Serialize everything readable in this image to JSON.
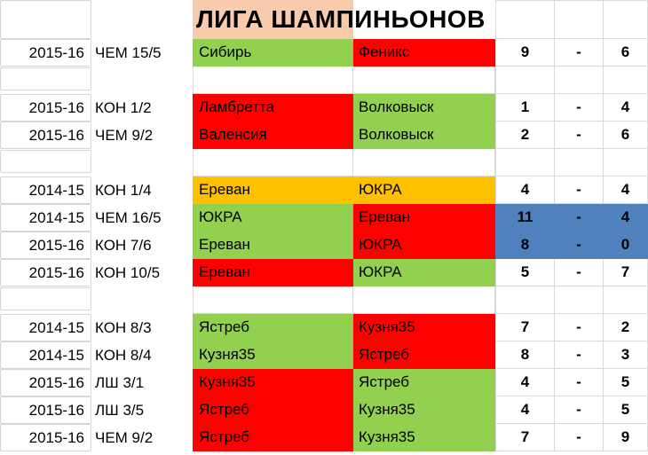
{
  "title": "ЛИГА ШАМПИНЬОНОВ",
  "score_separator": "-",
  "colors": {
    "green": "#92D050",
    "red": "#FF0000",
    "orange": "#FFC000",
    "blue_score": "#4F81BD",
    "title_bg": "#F8CBAD",
    "gridline": "#D9D9D9"
  },
  "rows": [
    {
      "type": "match",
      "season": "2015-16",
      "stage": "ЧЕМ 15/5",
      "home": "Сибирь",
      "home_color": "green",
      "away": "Феникс",
      "away_color": "red",
      "home_score": "9",
      "away_score": "6",
      "score_bg": ""
    },
    {
      "type": "spacer"
    },
    {
      "type": "match",
      "season": "2015-16",
      "stage": "КОН 1/2",
      "home": "Ламбретта",
      "home_color": "red",
      "away": "Волковыск",
      "away_color": "green",
      "home_score": "1",
      "away_score": "4",
      "score_bg": ""
    },
    {
      "type": "match",
      "season": "2015-16",
      "stage": "ЧЕМ 9/2",
      "home": "Валенсия",
      "home_color": "red",
      "away": "Волковыск",
      "away_color": "green",
      "home_score": "2",
      "away_score": "6",
      "score_bg": ""
    },
    {
      "type": "spacer"
    },
    {
      "type": "match",
      "season": "2014-15",
      "stage": "КОН 1/4",
      "home": "Ереван",
      "home_color": "orange",
      "away": "ЮКРА",
      "away_color": "orange",
      "home_score": "4",
      "away_score": "4",
      "score_bg": ""
    },
    {
      "type": "match",
      "season": "2014-15",
      "stage": "ЧЕМ 16/5",
      "home": "ЮКРА",
      "home_color": "green",
      "away": "Ереван",
      "away_color": "red",
      "home_score": "11",
      "away_score": "4",
      "score_bg": "blue"
    },
    {
      "type": "match",
      "season": "2015-16",
      "stage": "КОН 7/6",
      "home": "Ереван",
      "home_color": "green",
      "away": "ЮКРА",
      "away_color": "red",
      "home_score": "8",
      "away_score": "0",
      "score_bg": "blue"
    },
    {
      "type": "match",
      "season": "2015-16",
      "stage": "КОН 10/5",
      "home": "Ереван",
      "home_color": "red",
      "away": "ЮКРА",
      "away_color": "green",
      "home_score": "5",
      "away_score": "7",
      "score_bg": ""
    },
    {
      "type": "spacer"
    },
    {
      "type": "match",
      "season": "2014-15",
      "stage": "КОН 8/3",
      "home": "Ястреб",
      "home_color": "green",
      "away": "Кузня35",
      "away_color": "red",
      "home_score": "7",
      "away_score": "2",
      "score_bg": ""
    },
    {
      "type": "match",
      "season": "2014-15",
      "stage": "КОН 8/4",
      "home": "Кузня35",
      "home_color": "green",
      "away": "Ястреб",
      "away_color": "red",
      "home_score": "8",
      "away_score": "3",
      "score_bg": ""
    },
    {
      "type": "match",
      "season": "2015-16",
      "stage": "ЛШ 3/1",
      "home": "Кузня35",
      "home_color": "red",
      "away": "Ястреб",
      "away_color": "green",
      "home_score": "4",
      "away_score": "5",
      "score_bg": ""
    },
    {
      "type": "match",
      "season": "2015-16",
      "stage": "ЛШ 3/5",
      "home": "Ястреб",
      "home_color": "red",
      "away": "Кузня35",
      "away_color": "green",
      "home_score": "4",
      "away_score": "5",
      "score_bg": ""
    },
    {
      "type": "match",
      "season": "2015-16",
      "stage": "ЧЕМ 9/2",
      "home": "Ястреб",
      "home_color": "red",
      "away": "Кузня35",
      "away_color": "green",
      "home_score": "7",
      "away_score": "9",
      "score_bg": ""
    }
  ]
}
